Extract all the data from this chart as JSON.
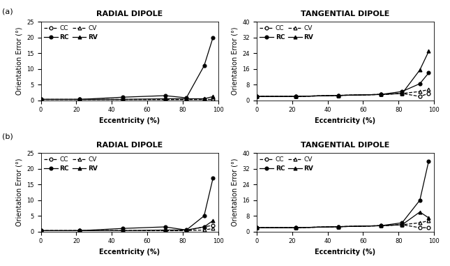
{
  "ecc_x": [
    0,
    22,
    46,
    70,
    82,
    92,
    97
  ],
  "a_rad_CC": [
    0.3,
    0.3,
    0.3,
    0.3,
    0.3,
    0.3,
    0.3
  ],
  "a_rad_CV": [
    0.3,
    0.3,
    0.3,
    0.3,
    0.3,
    0.3,
    0.3
  ],
  "a_rad_RC": [
    0.3,
    0.3,
    1.0,
    1.5,
    0.8,
    11.0,
    20.0
  ],
  "a_rad_RV": [
    0.3,
    0.3,
    0.3,
    0.5,
    0.5,
    0.5,
    1.2
  ],
  "a_tan_CC": [
    2.0,
    2.0,
    2.5,
    3.0,
    3.5,
    2.0,
    3.5
  ],
  "a_tan_CV": [
    2.0,
    2.0,
    2.5,
    3.0,
    3.5,
    4.5,
    5.5
  ],
  "a_tan_RC": [
    2.0,
    2.0,
    2.5,
    3.0,
    4.5,
    8.5,
    14.0
  ],
  "a_tan_RV": [
    2.0,
    2.0,
    2.5,
    3.0,
    3.5,
    15.5,
    25.0
  ],
  "b_rad_CC": [
    0.3,
    0.3,
    0.3,
    0.3,
    0.3,
    1.5,
    2.0
  ],
  "b_rad_CV": [
    0.3,
    0.3,
    0.3,
    0.3,
    0.3,
    0.5,
    1.0
  ],
  "b_rad_RC": [
    0.3,
    0.3,
    1.0,
    1.5,
    0.5,
    5.0,
    17.0
  ],
  "b_rad_RV": [
    0.3,
    0.3,
    0.3,
    0.5,
    0.5,
    1.5,
    3.5
  ],
  "b_tan_CC": [
    2.0,
    2.0,
    2.5,
    3.0,
    3.5,
    2.0,
    2.0
  ],
  "b_tan_CV": [
    2.0,
    2.0,
    2.5,
    3.0,
    3.5,
    4.5,
    5.5
  ],
  "b_tan_RC": [
    2.0,
    2.0,
    2.5,
    3.0,
    4.5,
    16.0,
    36.0
  ],
  "b_tan_RV": [
    2.0,
    2.0,
    2.5,
    3.0,
    3.5,
    10.0,
    7.0
  ],
  "ylabel": "Orientation Error (°)",
  "xlabel": "Eccentricity (%)",
  "title_rad": "RADIAL DIPOLE",
  "title_tan": "TANGENTIAL DIPOLE",
  "label_a": "(a)",
  "label_b": "(b)",
  "yticks_rad": [
    0,
    5,
    10,
    15,
    20,
    25
  ],
  "yticks_tan": [
    0,
    8,
    16,
    24,
    32,
    40
  ],
  "xticks": [
    0,
    20,
    40,
    60,
    80,
    100
  ]
}
